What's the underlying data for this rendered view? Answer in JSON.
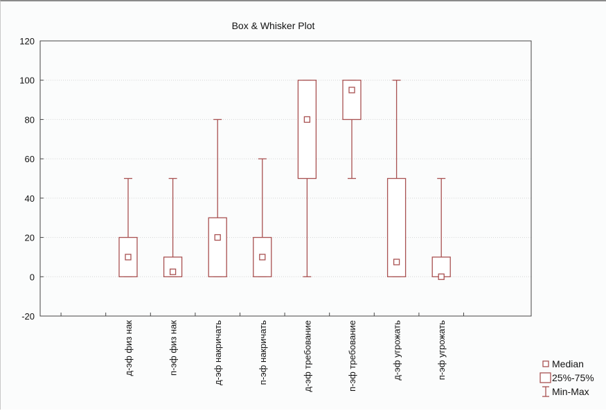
{
  "chart_data": {
    "type": "box",
    "title": "Box & Whisker Plot",
    "xlabel": "",
    "ylabel": "",
    "ylim": [
      -20,
      120
    ],
    "yticks": [
      -20,
      0,
      20,
      40,
      60,
      80,
      100,
      120
    ],
    "grid": true,
    "legend_position": "bottom-right",
    "legend": [
      "Median",
      "25%-75%",
      "Min-Max"
    ],
    "color": "#a85050",
    "categories": [
      "д-эф физ нак",
      "п-эф физ нак",
      "д-эф накричать",
      "п-эф накричать",
      "д-эф требование",
      "п-эф требование",
      "д-эф угрожать",
      "п-эф угрожать"
    ],
    "boxes": [
      {
        "min": 0,
        "q1": 0,
        "median": 10,
        "q3": 20,
        "max": 50
      },
      {
        "min": 0,
        "q1": 0,
        "median": 2.5,
        "q3": 10,
        "max": 50
      },
      {
        "min": 0,
        "q1": 0,
        "median": 20,
        "q3": 30,
        "max": 80
      },
      {
        "min": 0,
        "q1": 0,
        "median": 10,
        "q3": 20,
        "max": 60
      },
      {
        "min": 0,
        "q1": 50,
        "median": 80,
        "q3": 100,
        "max": 100
      },
      {
        "min": 50,
        "q1": 80,
        "median": 95,
        "q3": 100,
        "max": 100
      },
      {
        "min": 0,
        "q1": 0,
        "median": 7.5,
        "q3": 50,
        "max": 100
      },
      {
        "min": 0,
        "q1": 0,
        "median": 0,
        "q3": 10,
        "max": 50
      }
    ]
  }
}
